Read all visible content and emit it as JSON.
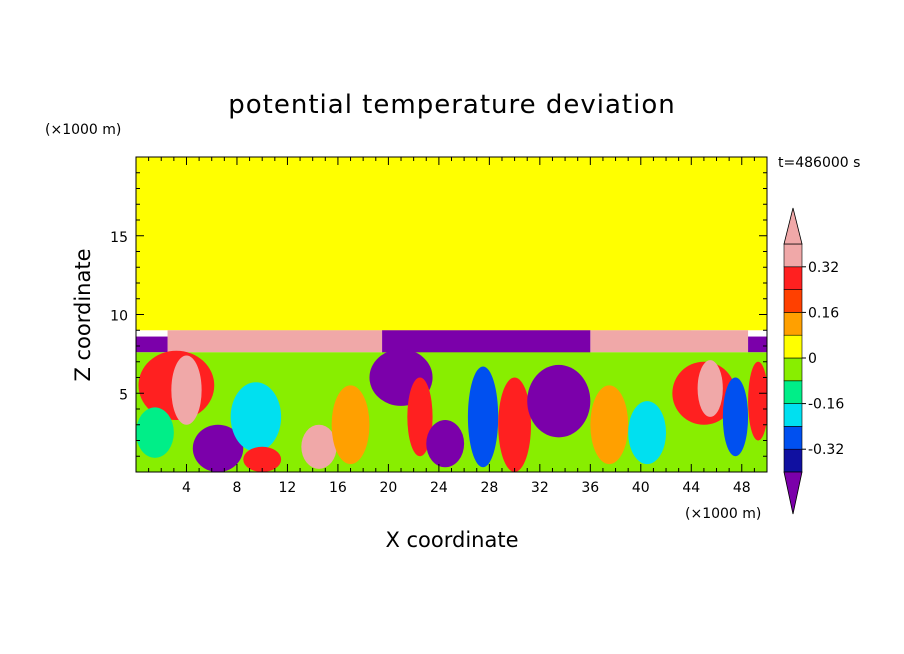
{
  "chart_data": {
    "type": "heatmap",
    "title": "potential temperature deviation",
    "xlabel": "X coordinate",
    "ylabel": "Z coordinate",
    "x_unit": "(×1000 m)",
    "y_unit": "(×1000 m)",
    "time_label": "t=486000 s",
    "xlim": [
      0,
      50
    ],
    "ylim": [
      0,
      20
    ],
    "x_ticks": [
      4,
      8,
      12,
      16,
      20,
      24,
      28,
      32,
      36,
      40,
      44,
      48
    ],
    "y_ticks": [
      5,
      10,
      15
    ],
    "grid": false,
    "colorbar": {
      "levels": [
        -0.4,
        -0.32,
        -0.24,
        -0.16,
        -0.08,
        0,
        0.08,
        0.16,
        0.24,
        0.32,
        0.4
      ],
      "colors": [
        "#7b00aa",
        "#1010a0",
        "#0050f0",
        "#00e0f0",
        "#00ee88",
        "#88ee00",
        "#ffff00",
        "#ffa000",
        "#ff4000",
        "#ff2020",
        "#f0a8a8"
      ],
      "tick_labels": [
        "0.32",
        "0.16",
        "0",
        "-0.16",
        "-0.32"
      ],
      "tick_values": [
        0.32,
        0.16,
        0,
        -0.16,
        -0.32
      ]
    },
    "regions": [
      {
        "x": [
          0,
          50
        ],
        "z": [
          9,
          20
        ],
        "value": 0.04
      },
      {
        "x": [
          3.5,
          21
        ],
        "z": [
          9,
          19.5
        ],
        "value": 0.08
      },
      {
        "x": [
          21,
          24
        ],
        "z": [
          9,
          17
        ],
        "value": 0.08
      },
      {
        "x": [
          24,
          34
        ],
        "z": [
          9,
          16.5
        ],
        "value": 0.08
      },
      {
        "x": [
          34,
          44
        ],
        "z": [
          9,
          19.8
        ],
        "value": 0.08
      },
      {
        "x": [
          2.5,
          19.5
        ],
        "z": [
          7.6,
          9
        ],
        "value": 0.4
      },
      {
        "x": [
          36,
          48.5
        ],
        "z": [
          7.6,
          9
        ],
        "value": 0.4
      },
      {
        "x": [
          19.5,
          36
        ],
        "z": [
          7.5,
          9
        ],
        "value": -0.4
      },
      {
        "x": [
          0,
          2.5
        ],
        "z": [
          7.6,
          8.6
        ],
        "value": -0.4
      },
      {
        "x": [
          48.5,
          50
        ],
        "z": [
          7.6,
          8.6
        ],
        "value": -0.4
      },
      {
        "x": [
          0,
          50
        ],
        "z": [
          0,
          7.6
        ],
        "value": 0.0
      }
    ],
    "blobs": [
      {
        "x": 3.2,
        "z": 5.5,
        "rx": 3.0,
        "rz": 2.2,
        "value": 0.32
      },
      {
        "x": 4.0,
        "z": 5.2,
        "rx": 1.2,
        "rz": 2.2,
        "value": 0.4
      },
      {
        "x": 1.5,
        "z": 2.5,
        "rx": 1.5,
        "rz": 1.6,
        "value": -0.08
      },
      {
        "x": 6.5,
        "z": 1.5,
        "rx": 2.0,
        "rz": 1.5,
        "value": -0.4
      },
      {
        "x": 9.5,
        "z": 3.5,
        "rx": 2.0,
        "rz": 2.2,
        "value": -0.16
      },
      {
        "x": 10.0,
        "z": 0.8,
        "rx": 1.5,
        "rz": 0.8,
        "value": 0.32
      },
      {
        "x": 14.5,
        "z": 1.6,
        "rx": 1.4,
        "rz": 1.4,
        "value": 0.4
      },
      {
        "x": 17.0,
        "z": 3.0,
        "rx": 1.5,
        "rz": 2.5,
        "value": 0.16
      },
      {
        "x": 21.0,
        "z": 6.0,
        "rx": 2.5,
        "rz": 1.8,
        "value": -0.4
      },
      {
        "x": 22.5,
        "z": 3.5,
        "rx": 1.0,
        "rz": 2.5,
        "value": 0.32
      },
      {
        "x": 24.5,
        "z": 1.8,
        "rx": 1.5,
        "rz": 1.5,
        "value": -0.4
      },
      {
        "x": 27.5,
        "z": 3.5,
        "rx": 1.2,
        "rz": 3.2,
        "value": -0.24
      },
      {
        "x": 30.0,
        "z": 3.0,
        "rx": 1.3,
        "rz": 3.0,
        "value": 0.32
      },
      {
        "x": 33.5,
        "z": 4.5,
        "rx": 2.5,
        "rz": 2.3,
        "value": -0.4
      },
      {
        "x": 37.5,
        "z": 3.0,
        "rx": 1.5,
        "rz": 2.5,
        "value": 0.16
      },
      {
        "x": 40.5,
        "z": 2.5,
        "rx": 1.5,
        "rz": 2.0,
        "value": -0.16
      },
      {
        "x": 45.0,
        "z": 5.0,
        "rx": 2.5,
        "rz": 2.0,
        "value": 0.32
      },
      {
        "x": 45.5,
        "z": 5.3,
        "rx": 1.0,
        "rz": 1.8,
        "value": 0.4
      },
      {
        "x": 47.5,
        "z": 3.5,
        "rx": 1.0,
        "rz": 2.5,
        "value": -0.24
      },
      {
        "x": 49.3,
        "z": 4.5,
        "rx": 0.8,
        "rz": 2.5,
        "value": 0.32
      }
    ]
  }
}
